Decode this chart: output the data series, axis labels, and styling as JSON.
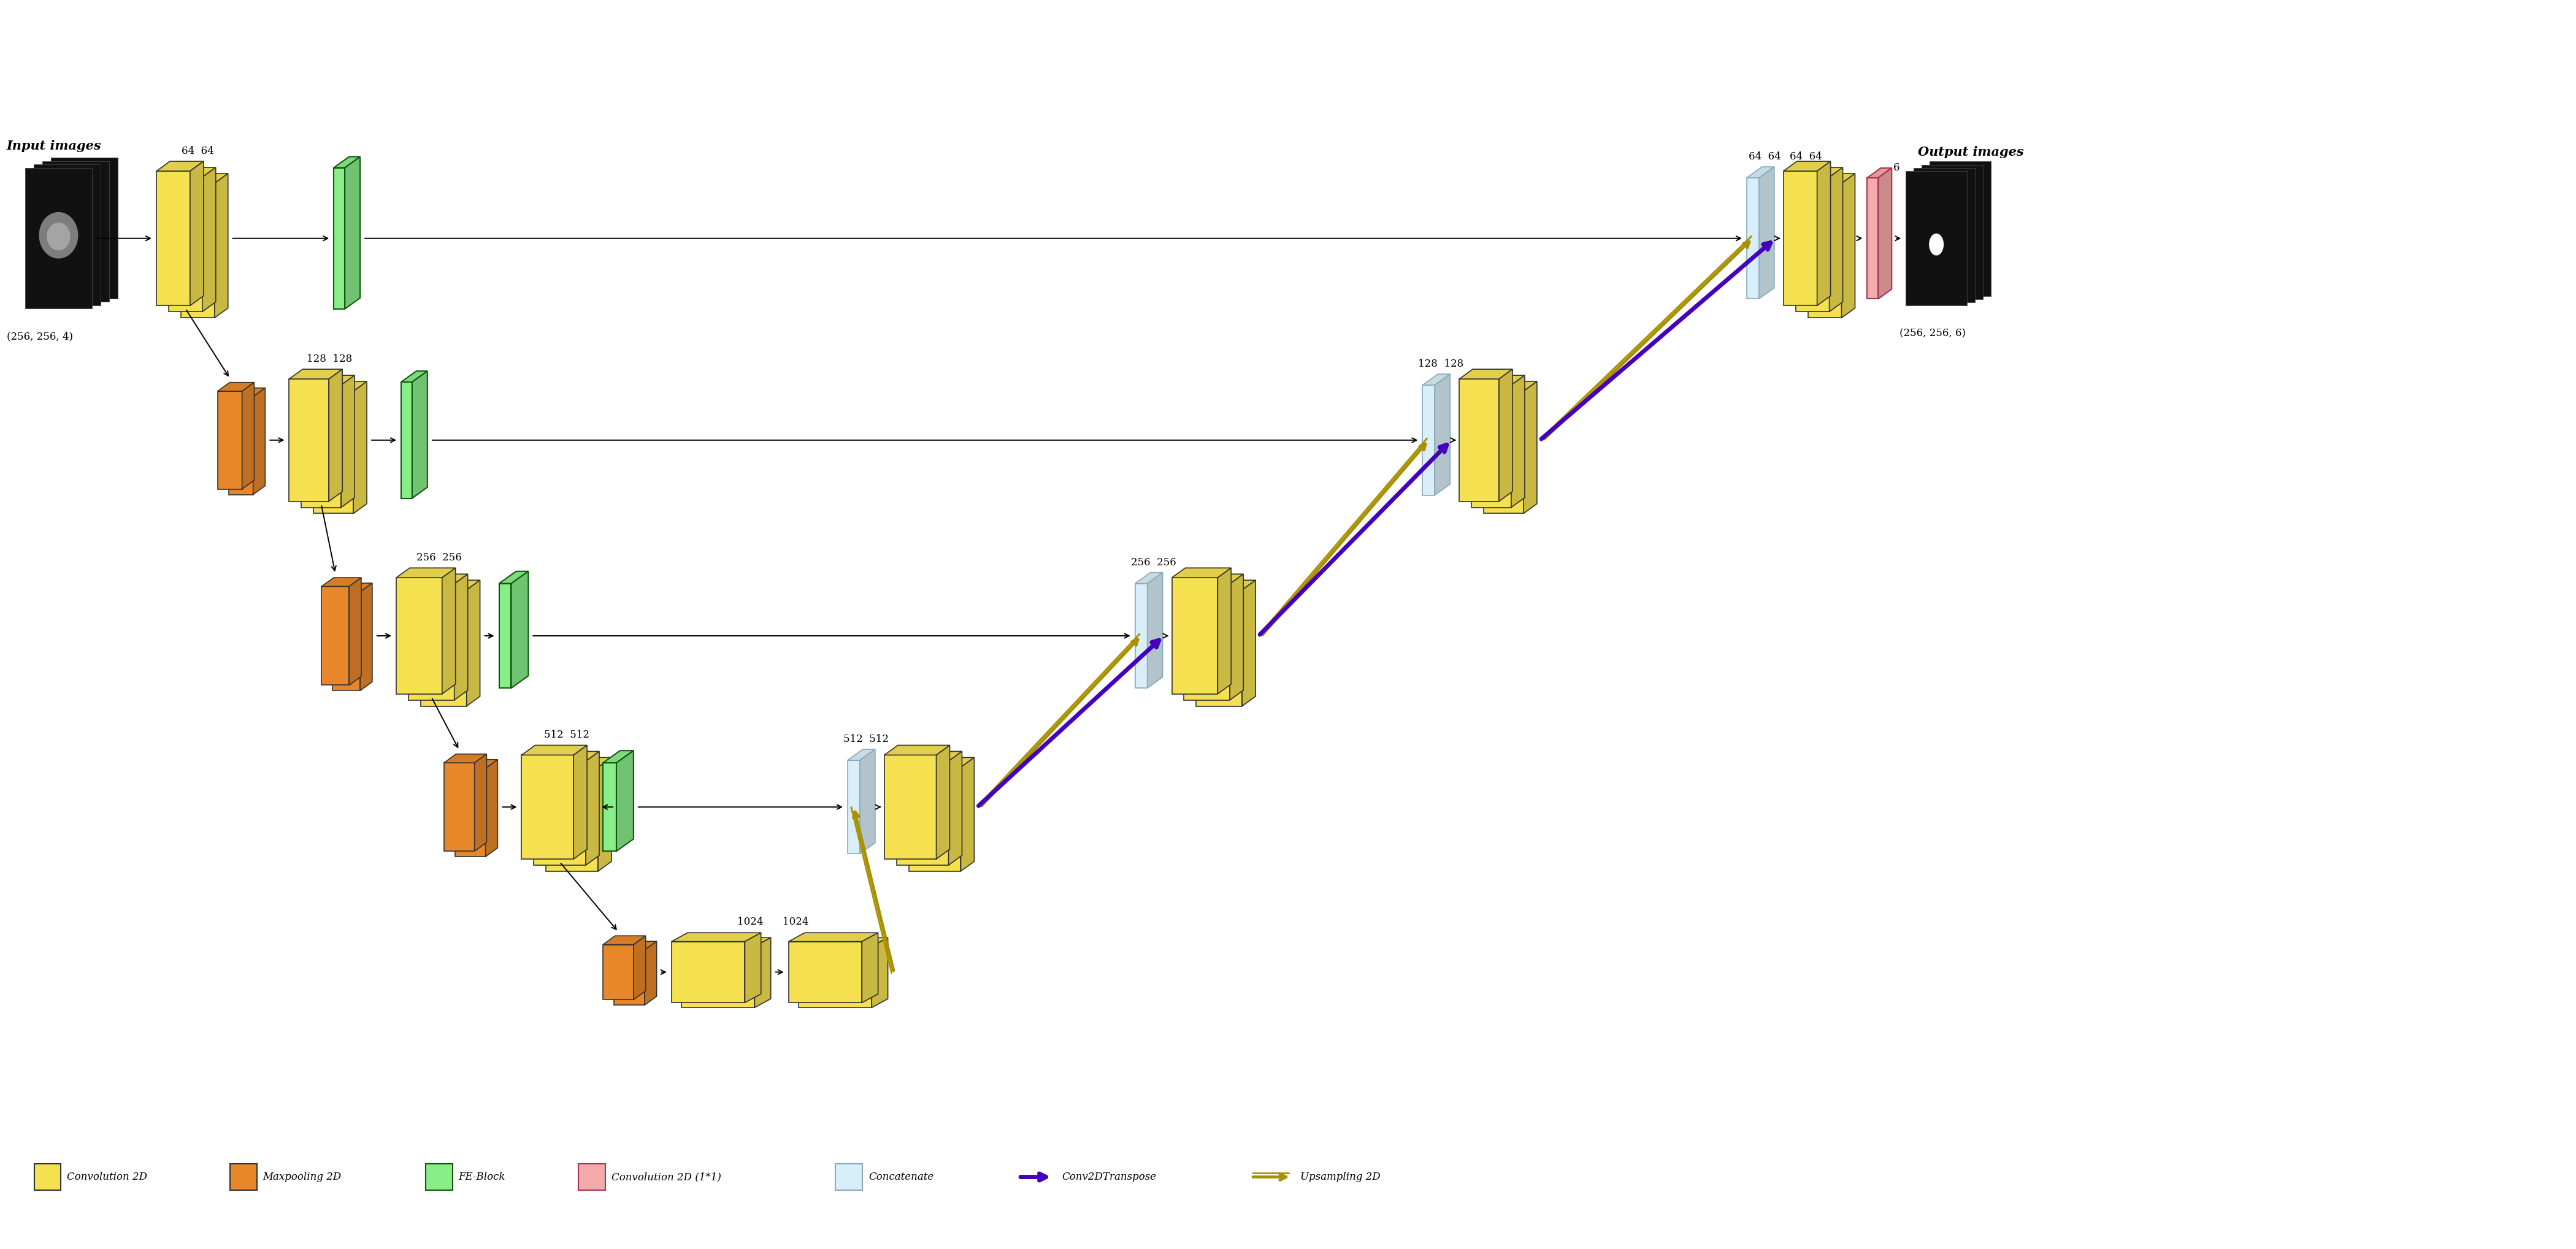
{
  "bg": "#ffffff",
  "yf": "#F5E050",
  "ye": "#333333",
  "of": "#E8872A",
  "oe": "#333333",
  "gf": "#88EE88",
  "ge": "#115511",
  "bf": "#D8EEF8",
  "be": "#88AABB",
  "pf": "#F5AAAA",
  "pe": "#AA3355",
  "purple": "#4400BB",
  "gold": "#A89000",
  "black": "#111111",
  "title_in": "Input images",
  "title_out": "Output images",
  "size_in": "(256, 256, 4)",
  "size_out": "(256, 256, 6)",
  "lbl64": "64  64",
  "lbl128": "128  128",
  "lbl256": "256  256",
  "lbl512": "512  512",
  "lbl1024": "1024      1024",
  "lbl64d": "64  64",
  "lbl6": "6",
  "lbl128d": "128  128",
  "lbl256d": "256  256",
  "lbl512d": "512  512"
}
